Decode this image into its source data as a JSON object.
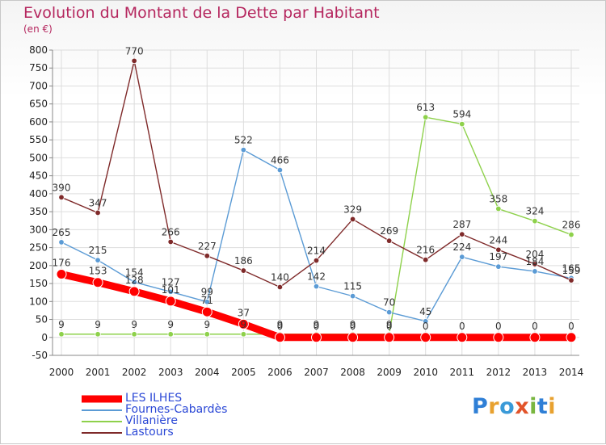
{
  "title": "Evolution du Montant de la Dette par Habitant",
  "unit_label": "(en €)",
  "logo": {
    "text": "Proxiti",
    "letters": [
      "P",
      "r",
      "o",
      "x",
      "i",
      "t",
      "i"
    ],
    "colors": [
      "#2f7fd6",
      "#e8a12f",
      "#3a9ad8",
      "#e2542a",
      "#79b640",
      "#2f7fd6",
      "#e8a12f"
    ]
  },
  "chart_data": {
    "type": "line",
    "title": "Evolution du Montant de la Dette par Habitant",
    "ylabel": "(en €)",
    "x": [
      "2000",
      "2001",
      "2002",
      "2003",
      "2004",
      "2005",
      "2006",
      "2007",
      "2008",
      "2009",
      "2010",
      "2011",
      "2012",
      "2013",
      "2014"
    ],
    "ylim": [
      -50,
      800
    ],
    "yticks": [
      -50,
      0,
      50,
      100,
      150,
      200,
      250,
      300,
      350,
      400,
      450,
      500,
      550,
      600,
      650,
      700,
      750,
      800
    ],
    "grid": true,
    "legend_position": "bottom-left",
    "series": [
      {
        "name": "LES ILHES",
        "color": "#ff0000",
        "values": [
          176,
          153,
          128,
          101,
          71,
          37,
          0,
          0,
          0,
          0,
          0,
          0,
          0,
          0,
          0
        ]
      },
      {
        "name": "Fournes-Cabardès",
        "color": "#5b9bd5",
        "values": [
          265,
          215,
          154,
          127,
          99,
          522,
          466,
          142,
          115,
          70,
          45,
          224,
          197,
          184,
          165
        ]
      },
      {
        "name": "Villanière",
        "color": "#8ed14b",
        "values": [
          9,
          9,
          9,
          9,
          9,
          9,
          9,
          9,
          9,
          9,
          613,
          594,
          358,
          324,
          286
        ]
      },
      {
        "name": "Lastours",
        "color": "#7f2a2a",
        "values": [
          390,
          347,
          770,
          266,
          227,
          186,
          140,
          214,
          329,
          269,
          216,
          287,
          244,
          204,
          159
        ]
      }
    ]
  }
}
